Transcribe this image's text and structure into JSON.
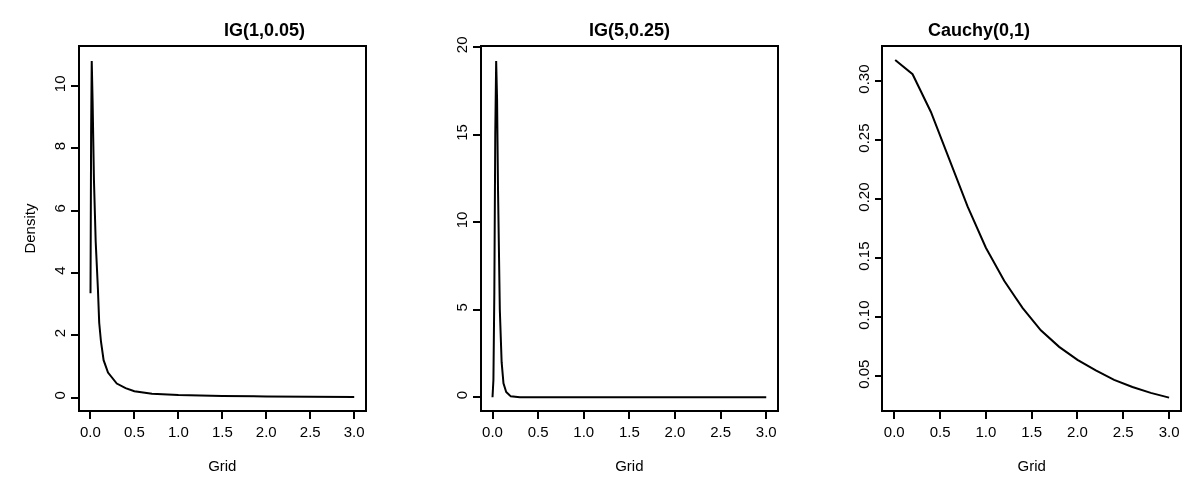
{
  "chart_data": [
    {
      "type": "line",
      "title": "IG(1,0.05)",
      "xlabel": "Grid",
      "ylabel": "Density",
      "color": "#000000",
      "x": [
        0.001,
        0.008,
        0.015,
        0.025,
        0.04,
        0.06,
        0.085,
        0.1,
        0.12,
        0.15,
        0.2,
        0.3,
        0.4,
        0.5,
        0.7,
        1.0,
        1.5,
        2.0,
        2.5,
        3.0
      ],
      "values": [
        3.35,
        8.5,
        10.8,
        9.5,
        7,
        5,
        3.5,
        2.4,
        1.8,
        1.2,
        0.8,
        0.45,
        0.3,
        0.2,
        0.12,
        0.08,
        0.05,
        0.035,
        0.025,
        0.02
      ],
      "xlim": [
        -0.12,
        3.12
      ],
      "ylim": [
        -0.4,
        11.25
      ],
      "xticks": [
        {
          "value": 0,
          "label": "0.0"
        },
        {
          "value": 0.5,
          "label": "0.5"
        },
        {
          "value": 1,
          "label": "1.0"
        },
        {
          "value": 1.5,
          "label": "1.5"
        },
        {
          "value": 2,
          "label": "2.0"
        },
        {
          "value": 2.5,
          "label": "2.5"
        },
        {
          "value": 3,
          "label": "3.0"
        }
      ],
      "yticks": [
        0,
        2,
        4,
        6,
        8,
        10
      ]
    },
    {
      "type": "line",
      "title": "IG(5,0.25)",
      "xlabel": "Grid",
      "color": "#000000",
      "x": [
        0.0,
        0.01,
        0.02,
        0.03,
        0.04,
        0.05,
        0.06,
        0.08,
        0.1,
        0.12,
        0.15,
        0.2,
        0.3,
        0.5,
        1.0,
        1.5,
        2.0,
        2.5,
        3.0
      ],
      "values": [
        0,
        1,
        6,
        15,
        19.2,
        17,
        12,
        5,
        2,
        0.8,
        0.3,
        0.05,
        0,
        0,
        0,
        0,
        0,
        0,
        0
      ],
      "xlim": [
        -0.12,
        3.12
      ],
      "ylim": [
        -0.73,
        20
      ],
      "xticks": [
        {
          "value": 0,
          "label": "0.0"
        },
        {
          "value": 0.5,
          "label": "0.5"
        },
        {
          "value": 1,
          "label": "1.0"
        },
        {
          "value": 1.5,
          "label": "1.5"
        },
        {
          "value": 2,
          "label": "2.0"
        },
        {
          "value": 2.5,
          "label": "2.5"
        },
        {
          "value": 3,
          "label": "3.0"
        }
      ],
      "yticks": [
        0,
        5,
        10,
        15,
        20
      ]
    },
    {
      "type": "line",
      "title": "Cauchy(0,1)",
      "xlabel": "Grid",
      "color": "#000000",
      "x": [
        0.01,
        0.2,
        0.4,
        0.6,
        0.8,
        1.0,
        1.2,
        1.4,
        1.6,
        1.8,
        2.0,
        2.2,
        2.4,
        2.6,
        2.8,
        3.0
      ],
      "values": [
        0.318,
        0.306,
        0.274,
        0.234,
        0.194,
        0.159,
        0.131,
        0.108,
        0.089,
        0.075,
        0.064,
        0.055,
        0.047,
        0.041,
        0.036,
        0.032
      ],
      "xlim": [
        -0.12,
        3.12
      ],
      "ylim": [
        0.0215,
        0.329
      ],
      "xticks": [
        {
          "value": 0,
          "label": "0.0"
        },
        {
          "value": 0.5,
          "label": "0.5"
        },
        {
          "value": 1,
          "label": "1.0"
        },
        {
          "value": 1.5,
          "label": "1.5"
        },
        {
          "value": 2,
          "label": "2.0"
        },
        {
          "value": 2.5,
          "label": "2.5"
        },
        {
          "value": 3,
          "label": "3.0"
        }
      ],
      "yticks": [
        0.05,
        {
          "value": 0.1,
          "label": "0.10"
        },
        0.15,
        {
          "value": 0.2,
          "label": "0.20"
        },
        0.25,
        {
          "value": 0.3,
          "label": "0.30"
        }
      ]
    }
  ]
}
